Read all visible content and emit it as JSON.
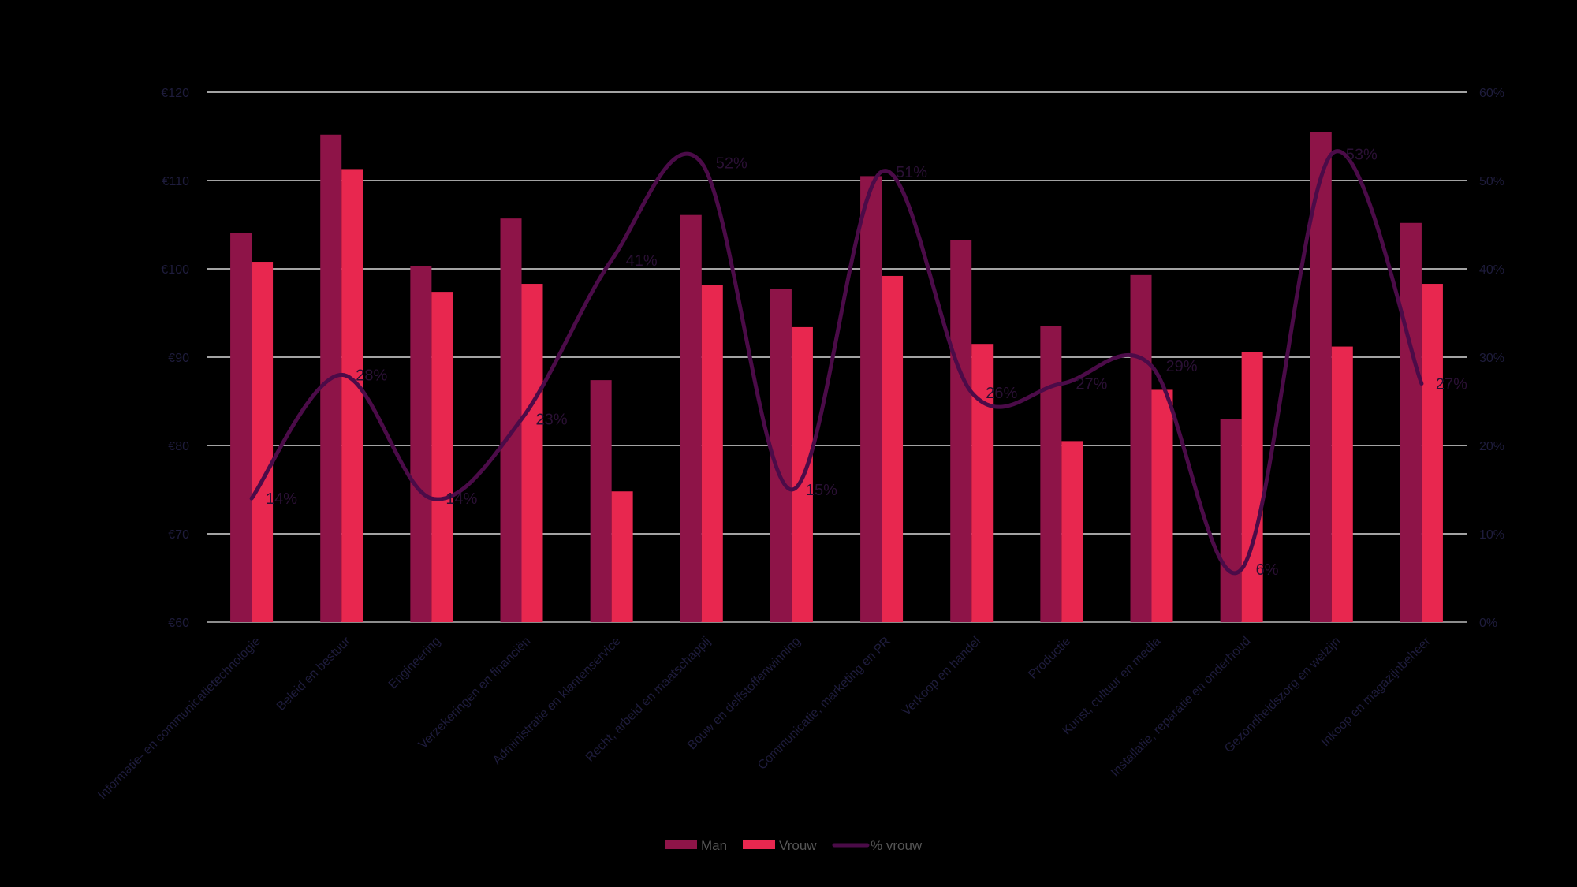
{
  "chart_data": {
    "type": "bar",
    "title": "",
    "categories": [
      "Informatie- en communicatietechnologie",
      "Beleid en bestuur",
      "Engineering",
      "Verzekeringen en financiën",
      "Administratie en klantenservice",
      "Recht, arbeid en maatschappij",
      "Bouw en delfstoffenwinning",
      "Communicatie, marketing en PR",
      "Verkoop en handel",
      "Productie",
      "Kunst, cultuur en media",
      "Installatie, reparatie en onderhoud",
      "Gezondheidszorg en welzijn",
      "Inkoop en magazijnbeheer"
    ],
    "series": [
      {
        "name": "Man",
        "type": "bar",
        "color": "#8e1448",
        "values": [
          104.1,
          115.2,
          100.3,
          105.7,
          87.4,
          106.1,
          97.7,
          110.5,
          103.3,
          93.5,
          99.3,
          83.0,
          115.5,
          105.2
        ]
      },
      {
        "name": "Vrouw",
        "type": "bar",
        "color": "#e8274f",
        "values": [
          100.8,
          111.3,
          97.4,
          98.3,
          74.8,
          98.2,
          93.4,
          99.2,
          91.5,
          80.5,
          86.3,
          90.6,
          91.2,
          98.3
        ]
      },
      {
        "name": "% vrouw",
        "type": "line",
        "axis": "right",
        "color": "#4b0b48",
        "smooth": true,
        "values": [
          14,
          28,
          14,
          23,
          41,
          52,
          15,
          51,
          26,
          27,
          29,
          6,
          53,
          27
        ],
        "labels": [
          "14%",
          "28%",
          "14%",
          "23%",
          "41%",
          "52%",
          "15%",
          "51%",
          "26%",
          "27%",
          "29%",
          "6%",
          "53%",
          "27%"
        ]
      }
    ],
    "y_left": {
      "ylim": [
        60,
        120
      ],
      "ticks": [
        "€60",
        "€70",
        "€80",
        "€90",
        "€100",
        "€110",
        "€120"
      ],
      "tick_values": [
        60,
        70,
        80,
        90,
        100,
        110,
        120
      ]
    },
    "y_right": {
      "ylim": [
        0,
        60
      ],
      "ticks": [
        "0%",
        "10%",
        "20%",
        "30%",
        "40%",
        "50%",
        "60%"
      ],
      "tick_values": [
        0,
        10,
        20,
        30,
        40,
        50,
        60
      ]
    },
    "grid": true,
    "legend": {
      "placement": "bottom",
      "items": [
        "Man",
        "Vrouw",
        "% vrouw"
      ]
    }
  }
}
